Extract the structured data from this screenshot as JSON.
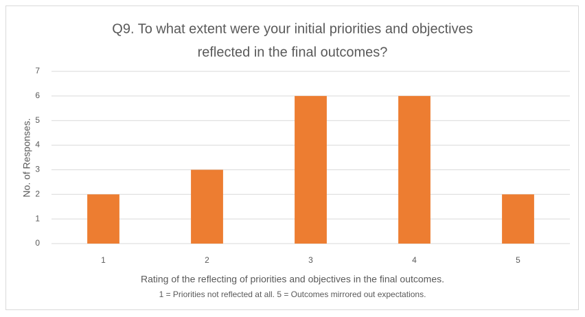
{
  "chart_data": {
    "type": "bar",
    "title": [
      "Q9. To what extent were your initial priorities and objectives",
      "reflected in the final outcomes?"
    ],
    "x_label": "Rating of the reflecting of priorities and objectives in the final outcomes.",
    "x_note": "1 = Priorities not reflected at all. 5 = Outcomes mirrored out expectations.",
    "y_label": "No. of Responses.",
    "categories": [
      "1",
      "2",
      "3",
      "4",
      "5"
    ],
    "values": [
      2,
      3,
      6,
      6,
      2
    ],
    "color": "#ed7d31",
    "ylim": [
      0,
      7
    ],
    "yticks": [
      0,
      1,
      2,
      3,
      4,
      5,
      6,
      7
    ],
    "grid": true
  }
}
